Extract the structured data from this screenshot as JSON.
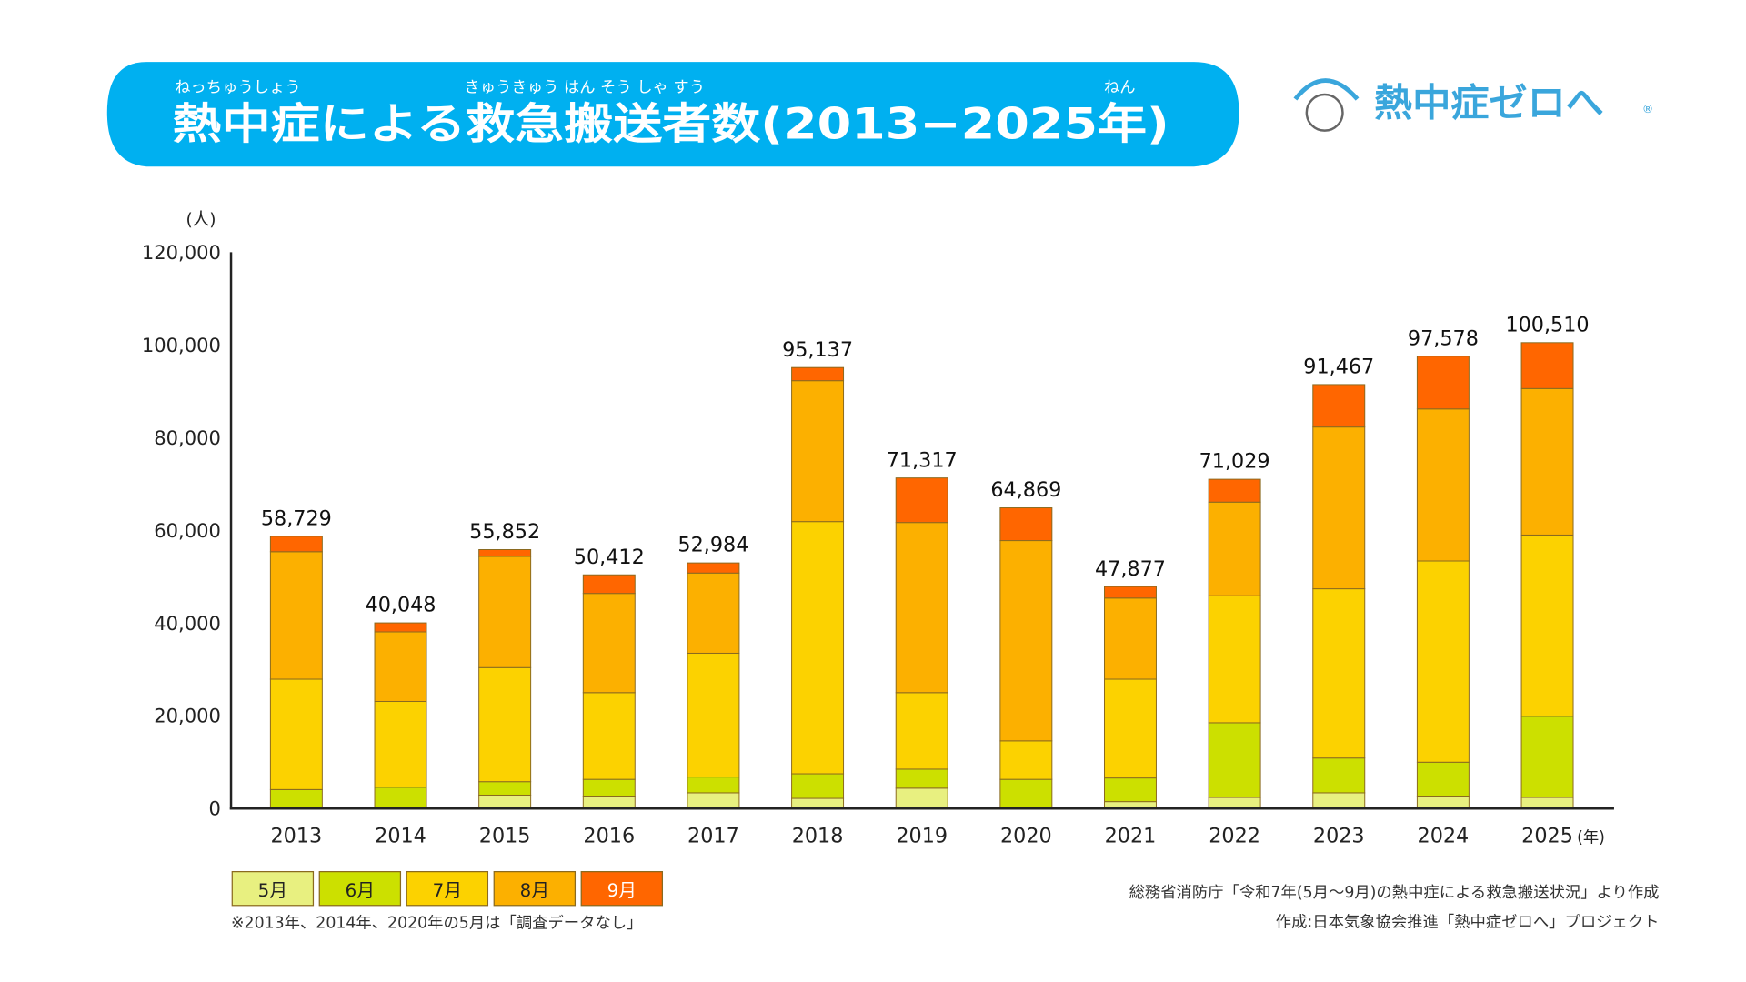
{
  "title": {
    "text": "熱中症による救急搬送者数(2013−2025年)",
    "furigana": [
      {
        "text": "ねっちゅうしょう"
      },
      {
        "text": "きゅうきゅう はん そう しゃ すう"
      },
      {
        "text": "ねん"
      }
    ]
  },
  "logo": {
    "text": "熱中症ゼロへ",
    "mark": "®"
  },
  "chart_data": {
    "type": "bar",
    "stacked": true,
    "title": "熱中症による救急搬送者数(2013−2025年)",
    "ylabel": "(人)",
    "xlabel_unit": "(年)",
    "ylim": [
      0,
      120000
    ],
    "yticks": [
      "0",
      "20,000",
      "40,000",
      "60,000",
      "80,000",
      "100,000",
      "120,000"
    ],
    "ytick_values": [
      0,
      20000,
      40000,
      60000,
      80000,
      100000,
      120000
    ],
    "categories": [
      "2013",
      "2014",
      "2015",
      "2016",
      "2017",
      "2018",
      "2019",
      "2020",
      "2021",
      "2022",
      "2023",
      "2024",
      "2025"
    ],
    "series": [
      {
        "name": "5月",
        "color": "#e8f080",
        "values": [
          0,
          0,
          2900,
          2700,
          3400,
          2200,
          4400,
          0,
          1500,
          2400,
          3400,
          2700,
          2400
        ]
      },
      {
        "name": "6月",
        "color": "#cce000",
        "values": [
          4100,
          4600,
          2900,
          3600,
          3400,
          5300,
          4100,
          6300,
          5100,
          16100,
          7500,
          7300,
          17500
        ]
      },
      {
        "name": "7月",
        "color": "#fcd200",
        "values": [
          23800,
          18500,
          24600,
          18700,
          26700,
          54400,
          16500,
          8300,
          21300,
          27400,
          36500,
          43400,
          39100
        ]
      },
      {
        "name": "8月",
        "color": "#fcb000",
        "values": [
          27500,
          15000,
          24000,
          21400,
          17300,
          30400,
          36700,
          43200,
          17500,
          20200,
          34900,
          32800,
          31600
        ]
      },
      {
        "name": "9月",
        "color": "#ff6600",
        "values": [
          3329,
          1948,
          1452,
          4012,
          2184,
          2837,
          9617,
          7069,
          2477,
          4929,
          9167,
          11378,
          9910
        ]
      }
    ],
    "totals": [
      58729,
      40048,
      55852,
      50412,
      52984,
      95137,
      71317,
      64869,
      47877,
      71029,
      91467,
      97578,
      100510
    ],
    "total_labels": [
      "58,729",
      "40,048",
      "55,852",
      "50,412",
      "52,984",
      "95,137",
      "71,317",
      "64,869",
      "47,877",
      "71,029",
      "91,467",
      "97,578",
      "100,510"
    ],
    "legend_position": "bottom-left",
    "grid": false
  },
  "notes": {
    "missing": "※2013年、2014年、2020年の5月は「調査データなし」",
    "source": "総務省消防庁「令和7年(5月～9月)の熱中症による救急搬送状況」より作成",
    "credit": "作成:日本気象協会推進「熱中症ゼロへ」プロジェクト"
  },
  "colors": {
    "title_bg": "#00b0f0",
    "logo": "#3aa6dc",
    "axis": "#222222"
  }
}
